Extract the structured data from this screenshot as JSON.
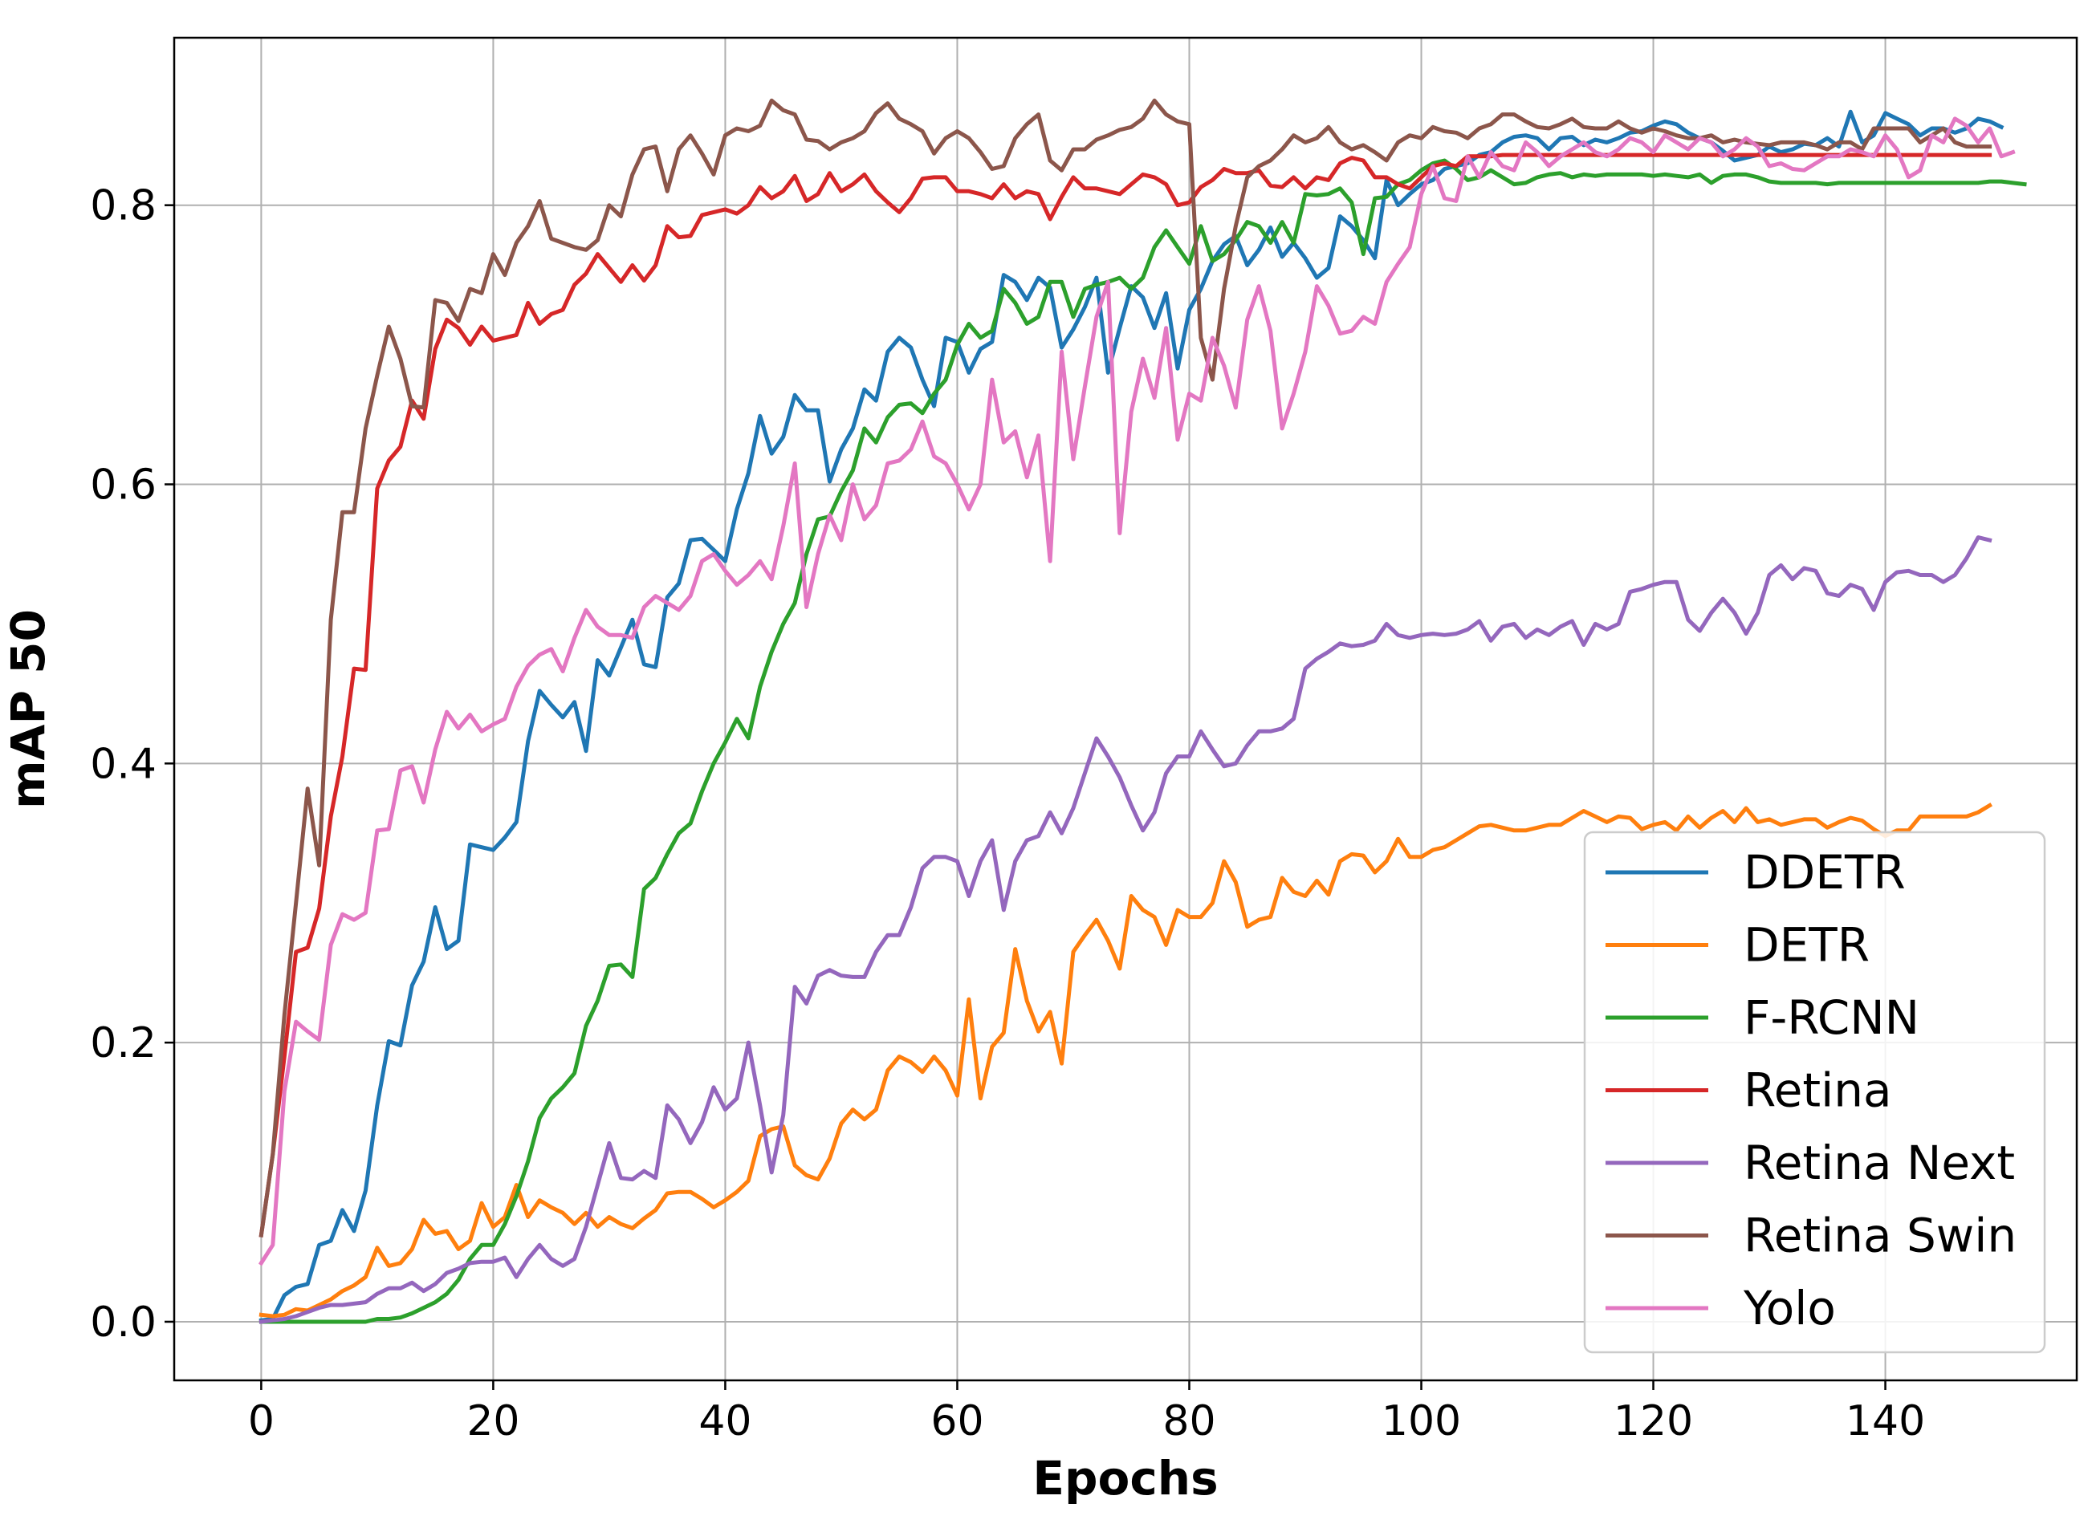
{
  "chart_data": {
    "type": "line",
    "xlabel": "Epochs",
    "ylabel": "mAP 50",
    "xlim": [
      -7.5,
      156.5
    ],
    "ylim": [
      -0.042,
      0.92
    ],
    "grid": true,
    "legend_position": "bottom-right",
    "x_ticks": [
      0,
      20,
      40,
      60,
      80,
      100,
      120,
      140
    ],
    "x_tick_labels": [
      "0",
      "20",
      "40",
      "60",
      "80",
      "100",
      "120",
      "140"
    ],
    "y_ticks": [
      0.0,
      0.2,
      0.4,
      0.6,
      0.8
    ],
    "y_tick_labels": [
      "0.0",
      "0.2",
      "0.4",
      "0.6",
      "0.8"
    ],
    "x_start": 0,
    "x_step": 1,
    "series": [
      {
        "name": "DDETR",
        "color": "#1f77b4",
        "values": [
          0.001,
          0.002,
          0.019,
          0.025,
          0.027,
          0.055,
          0.058,
          0.08,
          0.065,
          0.094,
          0.155,
          0.201,
          0.198,
          0.241,
          0.258,
          0.297,
          0.267,
          0.273,
          0.342,
          0.34,
          0.338,
          0.347,
          0.358,
          0.416,
          0.452,
          0.442,
          0.433,
          0.444,
          0.409,
          0.474,
          0.463,
          0.483,
          0.503,
          0.471,
          0.469,
          0.519,
          0.529,
          0.56,
          0.561,
          0.553,
          0.545,
          0.582,
          0.608,
          0.649,
          0.622,
          0.634,
          0.664,
          0.653,
          0.653,
          0.602,
          0.625,
          0.64,
          0.668,
          0.66,
          0.695,
          0.705,
          0.698,
          0.675,
          0.656,
          0.705,
          0.702,
          0.68,
          0.697,
          0.702,
          0.75,
          0.745,
          0.732,
          0.748,
          0.741,
          0.698,
          0.711,
          0.727,
          0.748,
          0.68,
          0.712,
          0.742,
          0.734,
          0.712,
          0.737,
          0.683,
          0.725,
          0.74,
          0.76,
          0.772,
          0.778,
          0.757,
          0.768,
          0.784,
          0.763,
          0.773,
          0.762,
          0.748,
          0.755,
          0.792,
          0.785,
          0.775,
          0.762,
          0.818,
          0.8,
          0.808,
          0.815,
          0.818,
          0.826,
          0.828,
          0.83,
          0.836,
          0.838,
          0.845,
          0.849,
          0.85,
          0.848,
          0.84,
          0.848,
          0.849,
          0.843,
          0.847,
          0.845,
          0.848,
          0.852,
          0.853,
          0.857,
          0.86,
          0.858,
          0.852,
          0.848,
          0.845,
          0.839,
          0.832,
          0.834,
          0.836,
          0.842,
          0.838,
          0.84,
          0.844,
          0.843,
          0.848,
          0.842,
          0.867,
          0.845,
          0.85,
          0.866,
          0.862,
          0.858,
          0.85,
          0.855,
          0.855,
          0.852,
          0.855,
          0.862,
          0.86,
          0.856
        ]
      },
      {
        "name": "DETR",
        "color": "#ff7f0e",
        "values": [
          0.005,
          0.004,
          0.005,
          0.009,
          0.008,
          0.012,
          0.016,
          0.022,
          0.026,
          0.032,
          0.053,
          0.04,
          0.042,
          0.052,
          0.073,
          0.063,
          0.065,
          0.052,
          0.058,
          0.085,
          0.068,
          0.075,
          0.098,
          0.075,
          0.087,
          0.082,
          0.078,
          0.07,
          0.078,
          0.068,
          0.075,
          0.07,
          0.067,
          0.074,
          0.08,
          0.092,
          0.093,
          0.093,
          0.088,
          0.082,
          0.087,
          0.093,
          0.101,
          0.133,
          0.138,
          0.14,
          0.112,
          0.105,
          0.102,
          0.117,
          0.142,
          0.152,
          0.145,
          0.152,
          0.18,
          0.19,
          0.186,
          0.179,
          0.19,
          0.18,
          0.162,
          0.231,
          0.16,
          0.197,
          0.207,
          0.267,
          0.23,
          0.208,
          0.222,
          0.185,
          0.265,
          0.277,
          0.288,
          0.273,
          0.253,
          0.305,
          0.295,
          0.29,
          0.27,
          0.295,
          0.29,
          0.29,
          0.3,
          0.33,
          0.315,
          0.283,
          0.288,
          0.29,
          0.318,
          0.308,
          0.305,
          0.316,
          0.306,
          0.33,
          0.335,
          0.334,
          0.322,
          0.33,
          0.346,
          0.333,
          0.333,
          0.338,
          0.34,
          0.345,
          0.35,
          0.355,
          0.356,
          0.354,
          0.352,
          0.352,
          0.354,
          0.356,
          0.356,
          0.361,
          0.366,
          0.362,
          0.358,
          0.362,
          0.361,
          0.353,
          0.356,
          0.358,
          0.352,
          0.362,
          0.354,
          0.361,
          0.366,
          0.358,
          0.368,
          0.358,
          0.36,
          0.356,
          0.358,
          0.36,
          0.36,
          0.354,
          0.358,
          0.361,
          0.359,
          0.353,
          0.348,
          0.352,
          0.352,
          0.362,
          0.362,
          0.362,
          0.362,
          0.362,
          0.365,
          0.37
        ]
      },
      {
        "name": "F-RCNN",
        "color": "#2ca02c",
        "values": [
          0.0,
          0.0,
          0.0,
          0.0,
          0.0,
          0.0,
          0.0,
          0.0,
          0.0,
          0.0,
          0.002,
          0.002,
          0.003,
          0.006,
          0.01,
          0.014,
          0.02,
          0.03,
          0.045,
          0.055,
          0.055,
          0.07,
          0.09,
          0.115,
          0.146,
          0.16,
          0.168,
          0.178,
          0.212,
          0.23,
          0.255,
          0.256,
          0.247,
          0.31,
          0.318,
          0.335,
          0.35,
          0.357,
          0.38,
          0.4,
          0.415,
          0.432,
          0.418,
          0.455,
          0.48,
          0.5,
          0.515,
          0.55,
          0.575,
          0.577,
          0.595,
          0.61,
          0.64,
          0.63,
          0.648,
          0.657,
          0.658,
          0.651,
          0.665,
          0.675,
          0.7,
          0.715,
          0.705,
          0.71,
          0.74,
          0.73,
          0.715,
          0.72,
          0.745,
          0.745,
          0.72,
          0.74,
          0.743,
          0.745,
          0.748,
          0.74,
          0.748,
          0.77,
          0.782,
          0.77,
          0.758,
          0.785,
          0.76,
          0.765,
          0.775,
          0.788,
          0.785,
          0.773,
          0.788,
          0.773,
          0.808,
          0.807,
          0.808,
          0.812,
          0.802,
          0.765,
          0.805,
          0.806,
          0.815,
          0.818,
          0.825,
          0.83,
          0.832,
          0.826,
          0.818,
          0.82,
          0.825,
          0.82,
          0.815,
          0.816,
          0.82,
          0.822,
          0.823,
          0.82,
          0.822,
          0.821,
          0.822,
          0.822,
          0.822,
          0.822,
          0.821,
          0.822,
          0.821,
          0.82,
          0.822,
          0.816,
          0.821,
          0.822,
          0.822,
          0.82,
          0.817,
          0.816,
          0.816,
          0.816,
          0.816,
          0.815,
          0.816,
          0.816,
          0.816,
          0.816,
          0.816,
          0.816,
          0.816,
          0.816,
          0.816,
          0.816,
          0.816,
          0.816,
          0.816,
          0.817,
          0.817,
          0.816,
          0.815
        ]
      },
      {
        "name": "Retina",
        "color": "#d62728",
        "values": [
          0.062,
          0.12,
          0.19,
          0.265,
          0.268,
          0.296,
          0.362,
          0.405,
          0.468,
          0.467,
          0.597,
          0.617,
          0.627,
          0.66,
          0.647,
          0.697,
          0.718,
          0.712,
          0.7,
          0.713,
          0.703,
          0.705,
          0.707,
          0.73,
          0.715,
          0.722,
          0.725,
          0.743,
          0.751,
          0.765,
          0.755,
          0.745,
          0.757,
          0.746,
          0.757,
          0.785,
          0.777,
          0.778,
          0.793,
          0.795,
          0.797,
          0.794,
          0.8,
          0.813,
          0.805,
          0.81,
          0.821,
          0.803,
          0.808,
          0.823,
          0.81,
          0.815,
          0.822,
          0.81,
          0.802,
          0.795,
          0.805,
          0.819,
          0.82,
          0.82,
          0.81,
          0.81,
          0.808,
          0.805,
          0.815,
          0.805,
          0.81,
          0.808,
          0.79,
          0.806,
          0.82,
          0.812,
          0.812,
          0.81,
          0.808,
          0.815,
          0.822,
          0.82,
          0.815,
          0.8,
          0.802,
          0.813,
          0.818,
          0.826,
          0.823,
          0.823,
          0.825,
          0.814,
          0.813,
          0.82,
          0.812,
          0.82,
          0.818,
          0.83,
          0.834,
          0.832,
          0.82,
          0.82,
          0.815,
          0.812,
          0.82,
          0.828,
          0.83,
          0.828,
          0.835,
          0.835,
          0.835,
          0.836,
          0.836,
          0.836,
          0.836,
          0.836,
          0.836,
          0.836,
          0.836,
          0.836,
          0.836,
          0.836,
          0.836,
          0.836,
          0.836,
          0.836,
          0.836,
          0.836,
          0.836,
          0.836,
          0.836,
          0.836,
          0.836,
          0.836,
          0.836,
          0.836,
          0.836,
          0.836,
          0.836,
          0.836,
          0.836,
          0.836,
          0.836,
          0.836,
          0.836,
          0.836,
          0.836,
          0.836,
          0.836,
          0.836,
          0.836,
          0.836,
          0.836,
          0.836
        ]
      },
      {
        "name": "Retina Next",
        "color": "#9467bd",
        "values": [
          0.0,
          0.001,
          0.002,
          0.004,
          0.007,
          0.01,
          0.012,
          0.012,
          0.013,
          0.014,
          0.02,
          0.024,
          0.024,
          0.028,
          0.022,
          0.027,
          0.035,
          0.038,
          0.042,
          0.043,
          0.043,
          0.046,
          0.032,
          0.045,
          0.055,
          0.045,
          0.04,
          0.045,
          0.068,
          0.098,
          0.128,
          0.103,
          0.102,
          0.108,
          0.103,
          0.155,
          0.145,
          0.128,
          0.143,
          0.168,
          0.152,
          0.16,
          0.2,
          0.155,
          0.107,
          0.148,
          0.24,
          0.228,
          0.248,
          0.252,
          0.248,
          0.247,
          0.247,
          0.265,
          0.277,
          0.277,
          0.297,
          0.325,
          0.333,
          0.333,
          0.33,
          0.305,
          0.33,
          0.345,
          0.295,
          0.33,
          0.345,
          0.348,
          0.365,
          0.35,
          0.368,
          0.393,
          0.418,
          0.405,
          0.39,
          0.37,
          0.352,
          0.365,
          0.393,
          0.405,
          0.405,
          0.423,
          0.41,
          0.398,
          0.4,
          0.413,
          0.423,
          0.423,
          0.425,
          0.432,
          0.468,
          0.475,
          0.48,
          0.486,
          0.484,
          0.485,
          0.488,
          0.5,
          0.492,
          0.49,
          0.492,
          0.493,
          0.492,
          0.493,
          0.496,
          0.502,
          0.488,
          0.498,
          0.5,
          0.49,
          0.496,
          0.492,
          0.498,
          0.502,
          0.485,
          0.5,
          0.496,
          0.5,
          0.523,
          0.525,
          0.528,
          0.53,
          0.53,
          0.503,
          0.495,
          0.508,
          0.518,
          0.508,
          0.493,
          0.508,
          0.535,
          0.542,
          0.532,
          0.54,
          0.538,
          0.522,
          0.52,
          0.528,
          0.525,
          0.51,
          0.53,
          0.537,
          0.538,
          0.535,
          0.535,
          0.53,
          0.535,
          0.547,
          0.562,
          0.56
        ]
      },
      {
        "name": "Retina Swin",
        "color": "#8c564b",
        "values": [
          0.062,
          0.12,
          0.22,
          0.3,
          0.382,
          0.327,
          0.503,
          0.58,
          0.58,
          0.64,
          0.678,
          0.713,
          0.69,
          0.656,
          0.655,
          0.732,
          0.73,
          0.717,
          0.74,
          0.737,
          0.765,
          0.75,
          0.773,
          0.785,
          0.803,
          0.776,
          0.773,
          0.77,
          0.768,
          0.775,
          0.8,
          0.792,
          0.822,
          0.84,
          0.842,
          0.81,
          0.84,
          0.85,
          0.837,
          0.822,
          0.85,
          0.855,
          0.853,
          0.857,
          0.875,
          0.868,
          0.865,
          0.847,
          0.846,
          0.84,
          0.845,
          0.848,
          0.853,
          0.866,
          0.873,
          0.862,
          0.858,
          0.853,
          0.837,
          0.848,
          0.853,
          0.848,
          0.838,
          0.826,
          0.828,
          0.848,
          0.858,
          0.865,
          0.832,
          0.825,
          0.84,
          0.84,
          0.847,
          0.85,
          0.854,
          0.856,
          0.862,
          0.875,
          0.865,
          0.86,
          0.858,
          0.705,
          0.675,
          0.74,
          0.785,
          0.82,
          0.828,
          0.832,
          0.84,
          0.85,
          0.845,
          0.848,
          0.856,
          0.845,
          0.84,
          0.843,
          0.838,
          0.832,
          0.845,
          0.85,
          0.848,
          0.856,
          0.853,
          0.852,
          0.848,
          0.855,
          0.858,
          0.865,
          0.865,
          0.86,
          0.856,
          0.855,
          0.858,
          0.862,
          0.856,
          0.855,
          0.855,
          0.86,
          0.855,
          0.852,
          0.855,
          0.853,
          0.85,
          0.848,
          0.848,
          0.85,
          0.845,
          0.847,
          0.845,
          0.844,
          0.843,
          0.845,
          0.845,
          0.845,
          0.843,
          0.84,
          0.845,
          0.845,
          0.84,
          0.855,
          0.855,
          0.855,
          0.855,
          0.845,
          0.85,
          0.855,
          0.845,
          0.842,
          0.842,
          0.842
        ]
      },
      {
        "name": "Yolo",
        "color": "#e377c2",
        "values": [
          0.042,
          0.055,
          0.165,
          0.215,
          0.208,
          0.202,
          0.27,
          0.292,
          0.288,
          0.293,
          0.352,
          0.353,
          0.395,
          0.398,
          0.372,
          0.41,
          0.437,
          0.425,
          0.435,
          0.423,
          0.428,
          0.432,
          0.455,
          0.47,
          0.478,
          0.482,
          0.466,
          0.49,
          0.51,
          0.498,
          0.492,
          0.492,
          0.49,
          0.512,
          0.52,
          0.515,
          0.51,
          0.52,
          0.545,
          0.55,
          0.538,
          0.528,
          0.535,
          0.545,
          0.532,
          0.57,
          0.615,
          0.512,
          0.55,
          0.578,
          0.56,
          0.6,
          0.575,
          0.585,
          0.615,
          0.617,
          0.625,
          0.645,
          0.62,
          0.615,
          0.6,
          0.582,
          0.6,
          0.675,
          0.63,
          0.638,
          0.605,
          0.635,
          0.545,
          0.695,
          0.618,
          0.67,
          0.72,
          0.745,
          0.565,
          0.652,
          0.69,
          0.662,
          0.712,
          0.632,
          0.665,
          0.66,
          0.705,
          0.685,
          0.655,
          0.718,
          0.742,
          0.71,
          0.64,
          0.665,
          0.695,
          0.742,
          0.728,
          0.708,
          0.71,
          0.72,
          0.715,
          0.745,
          0.758,
          0.77,
          0.808,
          0.828,
          0.805,
          0.803,
          0.835,
          0.82,
          0.838,
          0.828,
          0.825,
          0.845,
          0.838,
          0.828,
          0.835,
          0.84,
          0.845,
          0.838,
          0.835,
          0.84,
          0.848,
          0.845,
          0.838,
          0.85,
          0.845,
          0.84,
          0.848,
          0.845,
          0.835,
          0.84,
          0.848,
          0.842,
          0.828,
          0.83,
          0.826,
          0.825,
          0.83,
          0.835,
          0.835,
          0.84,
          0.838,
          0.835,
          0.85,
          0.84,
          0.82,
          0.825,
          0.85,
          0.845,
          0.862,
          0.857,
          0.845,
          0.855,
          0.835,
          0.838
        ]
      }
    ]
  }
}
